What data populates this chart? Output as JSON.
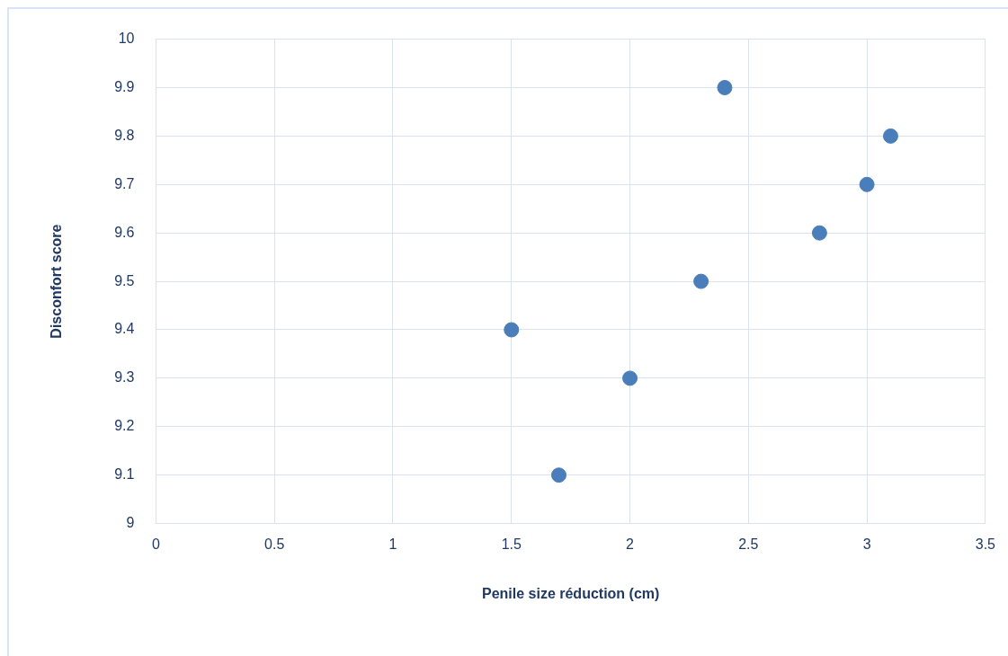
{
  "chart_data": {
    "type": "scatter",
    "xlabel": "Penile size réduction (cm)",
    "ylabel": "Disconfort score",
    "x": [
      1.5,
      1.7,
      2,
      2.3,
      2.4,
      2.8,
      3,
      3.1
    ],
    "values": [
      9.4,
      9.1,
      9.3,
      9.5,
      9.9,
      9.6,
      9.7,
      9.8
    ],
    "color": "#4a7ebb",
    "marker": "circle",
    "grid": true,
    "legend": false,
    "xlim": [
      0,
      3.5
    ],
    "xticks": [
      0,
      0.5,
      1,
      1.5,
      2,
      2.5,
      3,
      3.5
    ],
    "ylim": [
      9,
      10
    ],
    "yticks": [
      9,
      9.1,
      9.2,
      9.3,
      9.4,
      9.5,
      9.6,
      9.7,
      9.8,
      9.9,
      10
    ]
  }
}
